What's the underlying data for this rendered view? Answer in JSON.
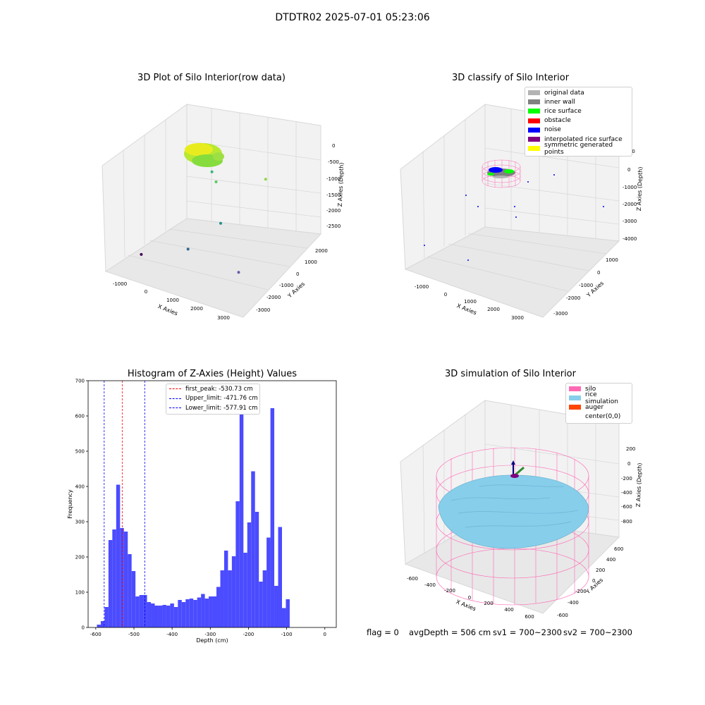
{
  "suptitle": "DTDTR02 2025-07-01 05:23:06",
  "raw_plot": {
    "title": "3D Plot of Silo Interior(row data)",
    "xlabel": "X Axies",
    "ylabel": "Y Axies",
    "zlabel": "Z Axies (Depth)",
    "xticks": [
      "-1000",
      "0",
      "1000",
      "2000",
      "3000"
    ],
    "yticks": [
      "2000",
      "1000",
      "0",
      "-1000",
      "-2000",
      "-3000"
    ],
    "zticks": [
      "0",
      "-500",
      "-1000",
      "-1500",
      "-2000",
      "-2500"
    ]
  },
  "classify_plot": {
    "title": "3D classify of Silo Interior",
    "xlabel": "X Axies",
    "ylabel": "Y Axies",
    "zlabel": "Z Axies (Depth)",
    "xticks": [
      "-1000",
      "0",
      "1000",
      "2000",
      "3000"
    ],
    "yticks": [
      "1000",
      "0",
      "-1000",
      "-2000",
      "-3000"
    ],
    "zticks": [
      "1000",
      "0",
      "-1000",
      "-2000",
      "-3000",
      "-4000"
    ],
    "legend": [
      {
        "label": "original data",
        "color": "#b3b3b3"
      },
      {
        "label": "inner wall",
        "color": "#808080"
      },
      {
        "label": "rice surface",
        "color": "#00ff00"
      },
      {
        "label": "obstacle",
        "color": "#ff0000"
      },
      {
        "label": "noise",
        "color": "#0000ff"
      },
      {
        "label": "interpolated rice surface",
        "color": "#800080"
      },
      {
        "label": "symmetric generated points",
        "color": "#ffff00"
      }
    ]
  },
  "histogram": {
    "title": "Histogram of Z-Axies (Height) Values",
    "xlabel": "Depth (cm)",
    "ylabel": "Frequency",
    "legend": [
      {
        "label": "first_peak: -530.73 cm",
        "color": "#ff0000"
      },
      {
        "label": "Upper_limit: -471.76 cm",
        "color": "#0000ff"
      },
      {
        "label": "Lower_limit: -577.91 cm",
        "color": "#0000ff"
      }
    ],
    "xticks": [
      "-600",
      "-500",
      "-400",
      "-300",
      "-200",
      "-100",
      "0"
    ],
    "yticks": [
      "0",
      "100",
      "200",
      "300",
      "400",
      "500",
      "600",
      "700"
    ]
  },
  "sim_plot": {
    "title": "3D simulation of Silo Interior",
    "xlabel": "X Axies",
    "ylabel": "Y Axies",
    "zlabel": "Z Axies (Depth)",
    "xticks": [
      "-600",
      "-400",
      "-200",
      "0",
      "200",
      "400",
      "600"
    ],
    "yticks": [
      "600",
      "400",
      "200",
      "0",
      "-200",
      "-400",
      "-600"
    ],
    "zticks": [
      "200",
      "0",
      "-200",
      "-400",
      "-600",
      "-800"
    ],
    "legend": [
      {
        "label": "silo",
        "color": "#ff69b4"
      },
      {
        "label": "rice simulation",
        "color": "#87ceeb"
      },
      {
        "label": "auger",
        "color": "#ff4500"
      },
      {
        "label": "center(0,0)",
        "color": ""
      }
    ]
  },
  "footer": {
    "flag": "flag = 0",
    "avg": "avgDepth = 506 cm",
    "sv1": "sv1 = 700~2300",
    "sv2": "sv2 = 700~2300"
  },
  "chart_data": [
    {
      "type": "scatter",
      "title": "3D Plot of Silo Interior(row data)",
      "xlabel": "X Axies",
      "ylabel": "Y Axies",
      "zlabel": "Z Axies (Depth)",
      "xlim": [
        -1500,
        3500
      ],
      "ylim": [
        -3500,
        2500
      ],
      "zlim": [
        -3000,
        200
      ],
      "series": [
        {
          "values": [
            {
              "x": -600,
              "y": -2700,
              "z": -2500
            },
            {
              "x": 1000,
              "y": -2500,
              "z": -2000
            },
            {
              "x": 1500,
              "y": -1100,
              "z": -1500
            },
            {
              "x": 200,
              "y": 900,
              "z": -900
            },
            {
              "x": 400,
              "y": 800,
              "z": -1100
            },
            {
              "x": 2300,
              "y": 600,
              "z": -500
            },
            {
              "x": 2400,
              "y": -1600,
              "z": -2500
            }
          ]
        }
      ]
    },
    {
      "type": "scatter",
      "title": "3D classify of Silo Interior",
      "xlabel": "X Axies",
      "ylabel": "Y Axies",
      "zlabel": "Z Axies (Depth)",
      "xlim": [
        -1500,
        3500
      ],
      "ylim": [
        -3500,
        1500
      ],
      "zlim": [
        -4000,
        1000
      ]
    },
    {
      "type": "bar",
      "title": "Histogram of Z-Axies (Height) Values",
      "xlabel": "Depth (cm)",
      "ylabel": "Frequency",
      "xlim": [
        -620,
        30
      ],
      "ylim": [
        0,
        700
      ],
      "bin_start": -597,
      "bin_width": 10.1,
      "values": [
        8,
        18,
        58,
        248,
        278,
        405,
        282,
        272,
        208,
        160,
        88,
        92,
        92,
        72,
        68,
        62,
        62,
        64,
        62,
        68,
        58,
        78,
        72,
        80,
        82,
        78,
        85,
        95,
        82,
        88,
        88,
        115,
        162,
        218,
        162,
        202,
        358,
        665,
        212,
        298,
        443,
        328,
        130,
        162,
        255,
        622,
        118,
        285,
        55,
        80
      ],
      "vlines": [
        {
          "x": -530.73,
          "color": "#ff0000",
          "label": "first_peak: -530.73 cm"
        },
        {
          "x": -471.76,
          "color": "#0000ff",
          "label": "Upper_limit: -471.76 cm"
        },
        {
          "x": -577.91,
          "color": "#0000ff",
          "label": "Lower_limit: -577.91 cm"
        }
      ]
    },
    {
      "type": "scatter",
      "title": "3D simulation of Silo Interior",
      "xlabel": "X Axies",
      "ylabel": "Y Axies",
      "zlabel": "Z Axies (Depth)",
      "xlim": [
        -700,
        700
      ],
      "ylim": [
        -700,
        700
      ],
      "zlim": [
        -900,
        300
      ]
    }
  ]
}
